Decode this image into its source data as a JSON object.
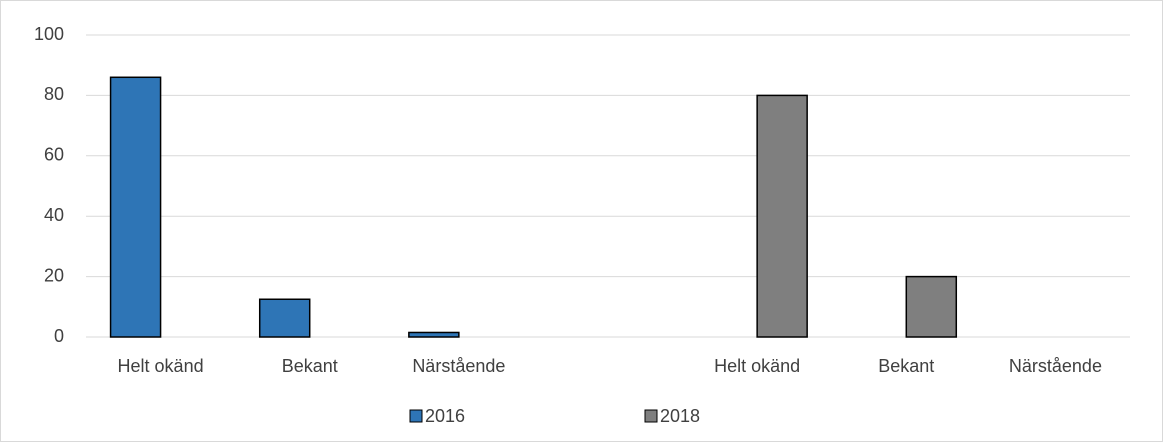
{
  "chart_data": {
    "type": "bar",
    "categories": [
      "Helt okänd",
      "Bekant",
      "Närstående",
      null,
      "Helt okänd",
      "Bekant",
      "Närstående"
    ],
    "series": [
      {
        "name": "2016",
        "color": "#2e75b6",
        "values": [
          86,
          12.5,
          1.5,
          null,
          null,
          null,
          null
        ]
      },
      {
        "name": "2018",
        "color": "#7f7f7f",
        "values": [
          null,
          null,
          null,
          null,
          80,
          20,
          null
        ]
      }
    ],
    "ylim": [
      0,
      100
    ],
    "yticks": [
      0,
      20,
      40,
      60,
      80,
      100
    ],
    "grid": true,
    "legend": "bottom"
  }
}
